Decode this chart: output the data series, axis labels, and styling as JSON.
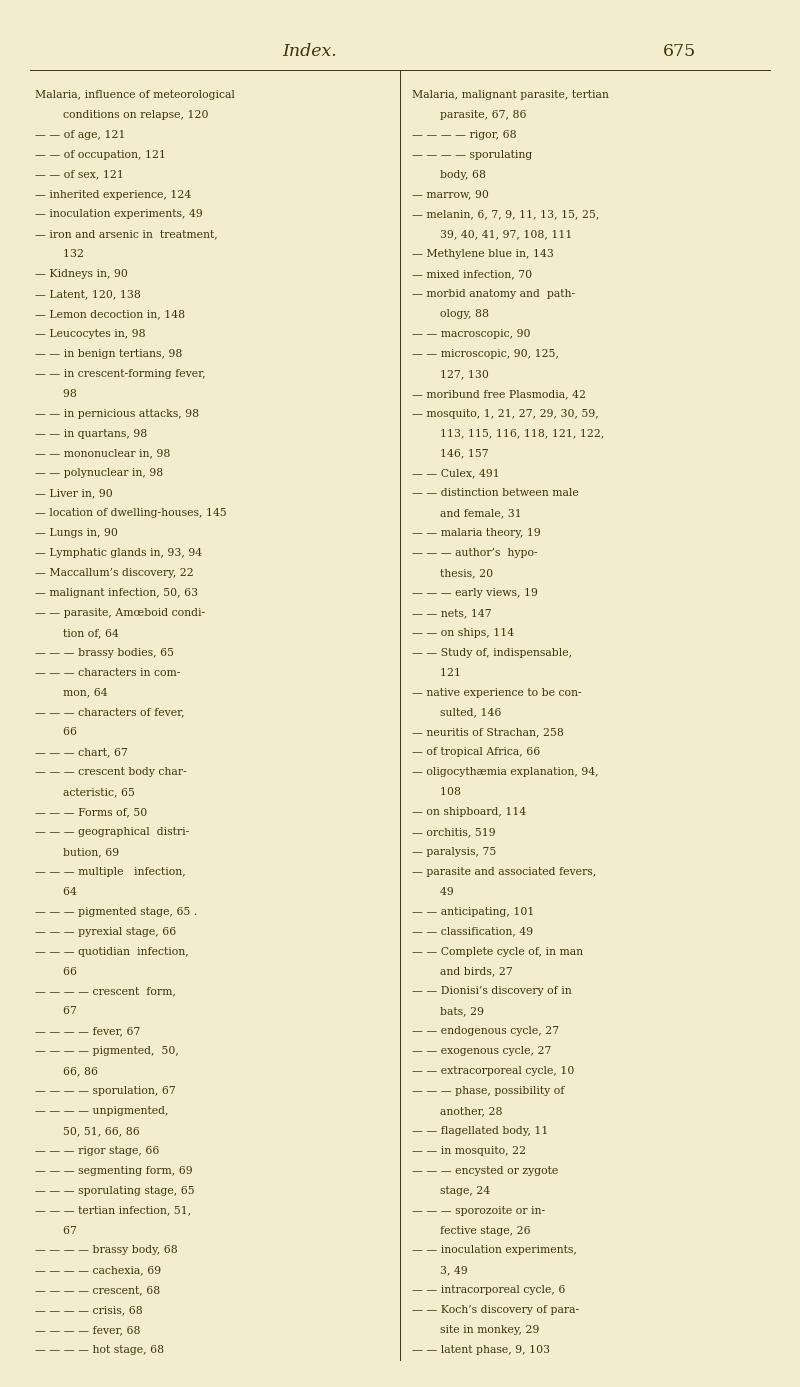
{
  "background_color": "#f2edcc",
  "title": "Index.",
  "page_number": "675",
  "title_fontsize": 12.5,
  "text_fontsize": 7.8,
  "text_color": "#3a3608",
  "title_color": "#3a3608",
  "figsize": [
    8.0,
    13.87
  ],
  "dpi": 100,
  "left_column": [
    [
      "Malaria, influence of meteorological",
      0
    ],
    [
      "        conditions on relapse, 120",
      0
    ],
    [
      "— — of age, 121",
      0
    ],
    [
      "— — of occupation, 121",
      0
    ],
    [
      "— — of sex, 121",
      0
    ],
    [
      "— inherited experience, 124",
      0
    ],
    [
      "— inoculation experiments, 49",
      0
    ],
    [
      "— iron and arsenic in  treatment,",
      0
    ],
    [
      "        132",
      0
    ],
    [
      "— Kidneys in, 90",
      0
    ],
    [
      "— Latent, 120, 138",
      0
    ],
    [
      "— Lemon decoction in, 148",
      0
    ],
    [
      "— Leucocytes in, 98",
      0
    ],
    [
      "— — in benign tertians, 98",
      0
    ],
    [
      "— — in crescent-forming fever,",
      0
    ],
    [
      "        98",
      0
    ],
    [
      "— — in pernicious attacks, 98",
      0
    ],
    [
      "— — in quartans, 98",
      0
    ],
    [
      "— — mononuclear in, 98",
      0
    ],
    [
      "— — polynuclear in, 98",
      0
    ],
    [
      "— Liver in, 90",
      0
    ],
    [
      "— location of dwelling-houses, 145",
      0
    ],
    [
      "— Lungs in, 90",
      0
    ],
    [
      "— Lymphatic glands in, 93, 94",
      0
    ],
    [
      "— Maccallum’s discovery, 22",
      0
    ],
    [
      "— malignant infection, 50, 63",
      0
    ],
    [
      "— — parasite, Amœboid condi-",
      0
    ],
    [
      "        tion of, 64",
      0
    ],
    [
      "— — — brassy bodies, 65",
      0
    ],
    [
      "— — — characters in com-",
      0
    ],
    [
      "        mon, 64",
      0
    ],
    [
      "— — — characters of fever,",
      0
    ],
    [
      "        66",
      0
    ],
    [
      "— — — chart, 67",
      0
    ],
    [
      "— — — crescent body char-",
      0
    ],
    [
      "        acteristic, 65",
      0
    ],
    [
      "— — — Forms of, 50",
      0
    ],
    [
      "— — — geographical  distri-",
      0
    ],
    [
      "        bution, 69",
      0
    ],
    [
      "— — — multiple   infection,",
      0
    ],
    [
      "        64",
      0
    ],
    [
      "— — — pigmented stage, 65 .",
      0
    ],
    [
      "— — — pyrexial stage, 66",
      0
    ],
    [
      "— — — quotidian  infection,",
      0
    ],
    [
      "        66",
      0
    ],
    [
      "— — — — crescent  form,",
      0
    ],
    [
      "        67",
      0
    ],
    [
      "— — — — fever, 67",
      0
    ],
    [
      "— — — — pigmented,  50,",
      0
    ],
    [
      "        66, 86",
      0
    ],
    [
      "— — — — sporulation, 67",
      0
    ],
    [
      "— — — — unpigmented,",
      0
    ],
    [
      "        50, 51, 66, 86",
      0
    ],
    [
      "— — — rigor stage, 66",
      0
    ],
    [
      "— — — segmenting form, 69",
      0
    ],
    [
      "— — — sporulating stage, 65",
      0
    ],
    [
      "— — — tertian infection, 51,",
      0
    ],
    [
      "        67",
      0
    ],
    [
      "— — — — brassy body, 68",
      0
    ],
    [
      "— — — — cachexia, 69",
      0
    ],
    [
      "— — — — crescent, 68",
      0
    ],
    [
      "— — — — crisis, 68",
      0
    ],
    [
      "— — — — fever, 68",
      0
    ],
    [
      "— — — — hot stage, 68",
      0
    ]
  ],
  "right_column": [
    [
      "Malaria, malignant parasite, tertian",
      0
    ],
    [
      "        parasite, 67, 86",
      0
    ],
    [
      "— — — — rigor, 68",
      0
    ],
    [
      "— — — — sporulating",
      0
    ],
    [
      "        body, 68",
      0
    ],
    [
      "— marrow, 90",
      0
    ],
    [
      "— melanin, 6, 7, 9, 11, 13, 15, 25,",
      0
    ],
    [
      "        39, 40, 41, 97, 108, 111",
      0
    ],
    [
      "— Methylene blue in, 143",
      0
    ],
    [
      "— mixed infection, 70",
      0
    ],
    [
      "— morbid anatomy and  path-",
      0
    ],
    [
      "        ology, 88",
      0
    ],
    [
      "— — macroscopic, 90",
      0
    ],
    [
      "— — microscopic, 90, 125,",
      0
    ],
    [
      "        127, 130",
      0
    ],
    [
      "— moribund free Plasmodia, 42",
      0
    ],
    [
      "— mosquito, 1, 21, 27, 29, 30, 59,",
      0
    ],
    [
      "        113, 115, 116, 118, 121, 122,",
      0
    ],
    [
      "        146, 157",
      0
    ],
    [
      "— — Culex, 491",
      0
    ],
    [
      "— — distinction between male",
      0
    ],
    [
      "        and female, 31",
      0
    ],
    [
      "— — malaria theory, 19",
      0
    ],
    [
      "— — — author’s  hypo-",
      0
    ],
    [
      "        thesis, 20",
      0
    ],
    [
      "— — — early views, 19",
      0
    ],
    [
      "— — nets, 147",
      0
    ],
    [
      "— — on ships, 114",
      0
    ],
    [
      "— — Study of, indispensable,",
      0
    ],
    [
      "        121",
      0
    ],
    [
      "— native experience to be con-",
      0
    ],
    [
      "        sulted, 146",
      0
    ],
    [
      "— neuritis of Strachan, 258",
      0
    ],
    [
      "— of tropical Africa, 66",
      0
    ],
    [
      "— oligocythæmia explanation, 94,",
      0
    ],
    [
      "        108",
      0
    ],
    [
      "— on shipboard, 114",
      0
    ],
    [
      "— orchitis, 519",
      0
    ],
    [
      "— paralysis, 75",
      0
    ],
    [
      "— parasite and associated fevers,",
      0
    ],
    [
      "        49",
      0
    ],
    [
      "— — anticipating, 101",
      0
    ],
    [
      "— — classification, 49",
      0
    ],
    [
      "— — Complete cycle of, in man",
      0
    ],
    [
      "        and birds, 27",
      0
    ],
    [
      "— — Dionisi’s discovery of in",
      0
    ],
    [
      "        bats, 29",
      0
    ],
    [
      "— — endogenous cycle, 27",
      0
    ],
    [
      "— — exogenous cycle, 27",
      0
    ],
    [
      "— — extracorporeal cycle, 10",
      0
    ],
    [
      "— — — phase, possibility of",
      0
    ],
    [
      "        another, 28",
      0
    ],
    [
      "— — flagellated body, 11",
      0
    ],
    [
      "— — in mosquito, 22",
      0
    ],
    [
      "— — — encysted or zygote",
      0
    ],
    [
      "        stage, 24",
      0
    ],
    [
      "— — — sporozoite or in-",
      0
    ],
    [
      "        fective stage, 26",
      0
    ],
    [
      "— — inoculation experiments,",
      0
    ],
    [
      "        3, 49",
      0
    ],
    [
      "— — intracorporeal cycle, 6",
      0
    ],
    [
      "— — Koch’s discovery of para-",
      0
    ],
    [
      "        site in monkey, 29",
      0
    ],
    [
      "— — latent phase, 9, 103",
      0
    ]
  ]
}
